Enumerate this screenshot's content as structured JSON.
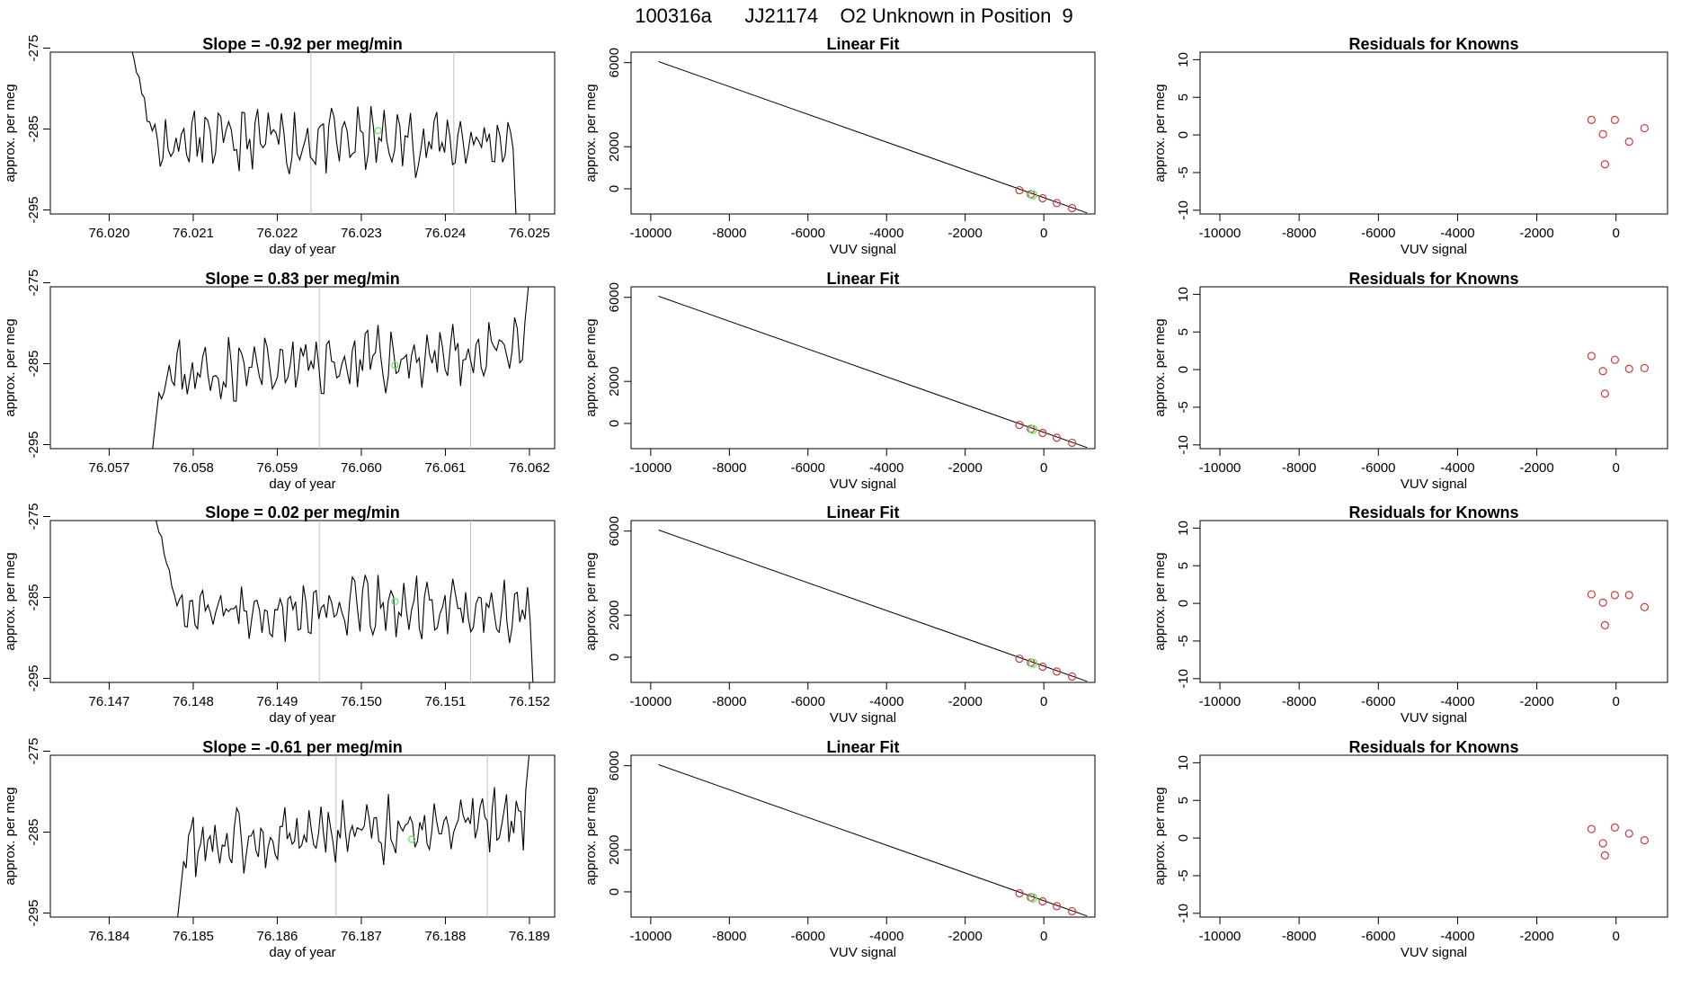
{
  "figure_title": "100316a      JJ21174    O2 Unknown in Position  9",
  "colors": {
    "trace": "#000000",
    "marker_green": "#66e066",
    "marker_red": "#cc3b3b",
    "vline": "#bfbfbf",
    "frame": "#000000"
  },
  "chart_data": [
    {
      "type": "line",
      "row": 1,
      "title": "Slope =  -0.92  per meg/min",
      "xlabel": "day of year",
      "ylabel": "approx. per meg",
      "xlim": [
        76.0193,
        76.0253
      ],
      "ylim": [
        -295.5,
        -275.5
      ],
      "xticks": [
        "76.020",
        "76.021",
        "76.022",
        "76.023",
        "76.024",
        "76.025"
      ],
      "yticks": [
        "-275",
        "-285",
        "-295"
      ],
      "vlines": [
        76.0224,
        76.0241
      ],
      "highlight_point": [
        76.0232,
        -285.2
      ],
      "trend": "start",
      "x_start": 76.0202,
      "x_end": 76.0249,
      "seed": 11
    },
    {
      "type": "scatter_fit",
      "row": 1,
      "title": "Linear Fit",
      "xlabel": "VUV signal",
      "ylabel": "approx. per meg",
      "xlim": [
        -10500,
        1300
      ],
      "ylim": [
        -1200,
        6500
      ],
      "xticks": [
        "-10000",
        "-8000",
        "-6000",
        "-4000",
        "-2000",
        "0"
      ],
      "yticks": [
        "0",
        "2000",
        "6000"
      ],
      "fit_line": [
        [
          -9800,
          6050
        ],
        [
          1100,
          -1150
        ]
      ],
      "known_points": [
        [
          -620,
          -70
        ],
        [
          -330,
          -260
        ],
        [
          -30,
          -450
        ],
        [
          330,
          -680
        ],
        [
          720,
          -920
        ]
      ],
      "unknown_point": [
        -280,
        -290
      ]
    },
    {
      "type": "scatter",
      "row": 1,
      "title": "Residuals for Knowns",
      "xlabel": "VUV signal",
      "ylabel": "approx. per meg",
      "xlim": [
        -10500,
        1300
      ],
      "ylim": [
        -10.5,
        11
      ],
      "xticks": [
        "-10000",
        "-8000",
        "-6000",
        "-4000",
        "-2000",
        "0"
      ],
      "yticks": [
        "-10",
        "-5",
        "0",
        "5",
        "10"
      ],
      "points": [
        [
          -620,
          2.0
        ],
        [
          -330,
          0.1
        ],
        [
          -280,
          -3.9
        ],
        [
          -30,
          2.0
        ],
        [
          330,
          -0.9
        ],
        [
          720,
          0.9
        ]
      ]
    },
    {
      "type": "line",
      "row": 2,
      "title": "Slope =  0.83  per meg/min",
      "xlabel": "day of year",
      "ylabel": "approx. per meg",
      "xlim": [
        76.0563,
        76.0623
      ],
      "ylim": [
        -295.5,
        -275.5
      ],
      "xticks": [
        "76.057",
        "76.058",
        "76.059",
        "76.060",
        "76.061",
        "76.062"
      ],
      "yticks": [
        "-275",
        "-285",
        "-295"
      ],
      "vlines": [
        76.0595,
        76.0613
      ],
      "highlight_point": [
        76.0604,
        -285.2
      ],
      "trend": "rise",
      "x_start": 76.0575,
      "x_end": 76.0621,
      "seed": 23
    },
    {
      "type": "scatter_fit",
      "row": 2,
      "title": "Linear Fit",
      "xlabel": "VUV signal",
      "ylabel": "approx. per meg",
      "xlim": [
        -10500,
        1300
      ],
      "ylim": [
        -1200,
        6500
      ],
      "xticks": [
        "-10000",
        "-8000",
        "-6000",
        "-4000",
        "-2000",
        "0"
      ],
      "yticks": [
        "0",
        "2000",
        "6000"
      ],
      "fit_line": [
        [
          -9800,
          6050
        ],
        [
          1100,
          -1150
        ]
      ],
      "known_points": [
        [
          -620,
          -70
        ],
        [
          -330,
          -260
        ],
        [
          -30,
          -450
        ],
        [
          330,
          -680
        ],
        [
          720,
          -920
        ]
      ],
      "unknown_point": [
        -280,
        -290
      ]
    },
    {
      "type": "scatter",
      "row": 2,
      "title": "Residuals for Knowns",
      "xlabel": "VUV signal",
      "ylabel": "approx. per meg",
      "xlim": [
        -10500,
        1300
      ],
      "ylim": [
        -10.5,
        11
      ],
      "xticks": [
        "-10000",
        "-8000",
        "-6000",
        "-4000",
        "-2000",
        "0"
      ],
      "yticks": [
        "-10",
        "-5",
        "0",
        "5",
        "10"
      ],
      "points": [
        [
          -620,
          1.8
        ],
        [
          -330,
          -0.2
        ],
        [
          -280,
          -3.2
        ],
        [
          -30,
          1.3
        ],
        [
          330,
          0.1
        ],
        [
          720,
          0.2
        ]
      ]
    },
    {
      "type": "line",
      "row": 3,
      "title": "Slope =  0.02  per meg/min",
      "xlabel": "day of year",
      "ylabel": "approx. per meg",
      "xlim": [
        76.1463,
        76.1523
      ],
      "ylim": [
        -295.5,
        -275.5
      ],
      "xticks": [
        "76.147",
        "76.148",
        "76.149",
        "76.150",
        "76.151",
        "76.152"
      ],
      "yticks": [
        "-275",
        "-285",
        "-295"
      ],
      "vlines": [
        76.1495,
        76.1513
      ],
      "highlight_point": [
        76.1504,
        -285.5
      ],
      "trend": "start",
      "x_start": 76.1475,
      "x_end": 76.1521,
      "seed": 37
    },
    {
      "type": "scatter_fit",
      "row": 3,
      "title": "Linear Fit",
      "xlabel": "VUV signal",
      "ylabel": "approx. per meg",
      "xlim": [
        -10500,
        1300
      ],
      "ylim": [
        -1200,
        6500
      ],
      "xticks": [
        "-10000",
        "-8000",
        "-6000",
        "-4000",
        "-2000",
        "0"
      ],
      "yticks": [
        "0",
        "2000",
        "6000"
      ],
      "fit_line": [
        [
          -9800,
          6050
        ],
        [
          1100,
          -1150
        ]
      ],
      "known_points": [
        [
          -620,
          -70
        ],
        [
          -330,
          -260
        ],
        [
          -30,
          -450
        ],
        [
          330,
          -680
        ],
        [
          720,
          -920
        ]
      ],
      "unknown_point": [
        -280,
        -290
      ]
    },
    {
      "type": "scatter",
      "row": 3,
      "title": "Residuals for Knowns",
      "xlabel": "VUV signal",
      "ylabel": "approx. per meg",
      "xlim": [
        -10500,
        1300
      ],
      "ylim": [
        -10.5,
        11
      ],
      "xticks": [
        "-10000",
        "-8000",
        "-6000",
        "-4000",
        "-2000",
        "0"
      ],
      "yticks": [
        "-10",
        "-5",
        "0",
        "5",
        "10"
      ],
      "points": [
        [
          -620,
          1.2
        ],
        [
          -330,
          0.1
        ],
        [
          -280,
          -2.9
        ],
        [
          -30,
          1.1
        ],
        [
          330,
          1.1
        ],
        [
          720,
          -0.5
        ]
      ]
    },
    {
      "type": "line",
      "row": 4,
      "title": "Slope =  -0.61  per meg/min",
      "xlabel": "day of year",
      "ylabel": "approx. per meg",
      "xlim": [
        76.1833,
        76.1893
      ],
      "ylim": [
        -295.5,
        -275.5
      ],
      "xticks": [
        "76.184",
        "76.185",
        "76.186",
        "76.187",
        "76.188",
        "76.189"
      ],
      "yticks": [
        "-275",
        "-285",
        "-295"
      ],
      "vlines": [
        76.1867,
        76.1885
      ],
      "highlight_point": [
        76.1876,
        -285.9
      ],
      "trend": "rise",
      "x_start": 76.1848,
      "x_end": 76.1891,
      "seed": 53
    },
    {
      "type": "scatter_fit",
      "row": 4,
      "title": "Linear Fit",
      "xlabel": "VUV signal",
      "ylabel": "approx. per meg",
      "xlim": [
        -10500,
        1300
      ],
      "ylim": [
        -1200,
        6500
      ],
      "xticks": [
        "-10000",
        "-8000",
        "-6000",
        "-4000",
        "-2000",
        "0"
      ],
      "yticks": [
        "0",
        "2000",
        "6000"
      ],
      "fit_line": [
        [
          -9800,
          6050
        ],
        [
          1100,
          -1150
        ]
      ],
      "known_points": [
        [
          -620,
          -70
        ],
        [
          -330,
          -260
        ],
        [
          -30,
          -450
        ],
        [
          330,
          -680
        ],
        [
          720,
          -920
        ]
      ],
      "unknown_point": [
        -280,
        -290
      ]
    },
    {
      "type": "scatter",
      "row": 4,
      "title": "Residuals for Knowns",
      "xlabel": "VUV signal",
      "ylabel": "approx. per meg",
      "xlim": [
        -10500,
        1300
      ],
      "ylim": [
        -10.5,
        11
      ],
      "xticks": [
        "-10000",
        "-8000",
        "-6000",
        "-4000",
        "-2000",
        "0"
      ],
      "yticks": [
        "-10",
        "-5",
        "0",
        "5",
        "10"
      ],
      "points": [
        [
          -620,
          1.2
        ],
        [
          -330,
          -0.7
        ],
        [
          -280,
          -2.3
        ],
        [
          -30,
          1.4
        ],
        [
          330,
          0.6
        ],
        [
          720,
          -0.3
        ]
      ]
    }
  ]
}
